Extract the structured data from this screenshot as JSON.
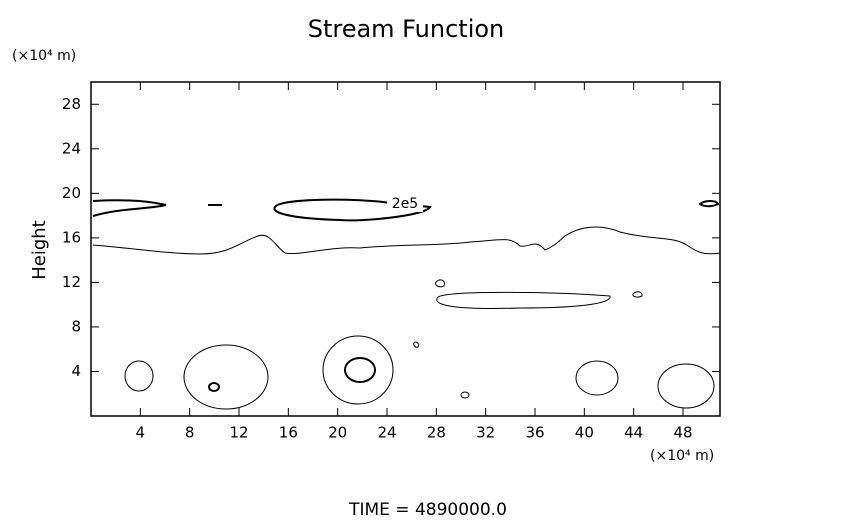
{
  "chart_data": {
    "type": "contour",
    "title": "Stream Function",
    "ylabel": "Height",
    "y_units": "(×10⁴ m)",
    "x_units": "(×10⁴ m)",
    "xlim": [
      0,
      51
    ],
    "ylim": [
      0,
      30
    ],
    "xticks": [
      4,
      8,
      12,
      16,
      20,
      24,
      28,
      32,
      36,
      40,
      44,
      48
    ],
    "yticks": [
      4,
      8,
      12,
      16,
      20,
      24,
      28
    ],
    "contour_label": "2e5",
    "footer": "TIME = 4890000.0"
  }
}
